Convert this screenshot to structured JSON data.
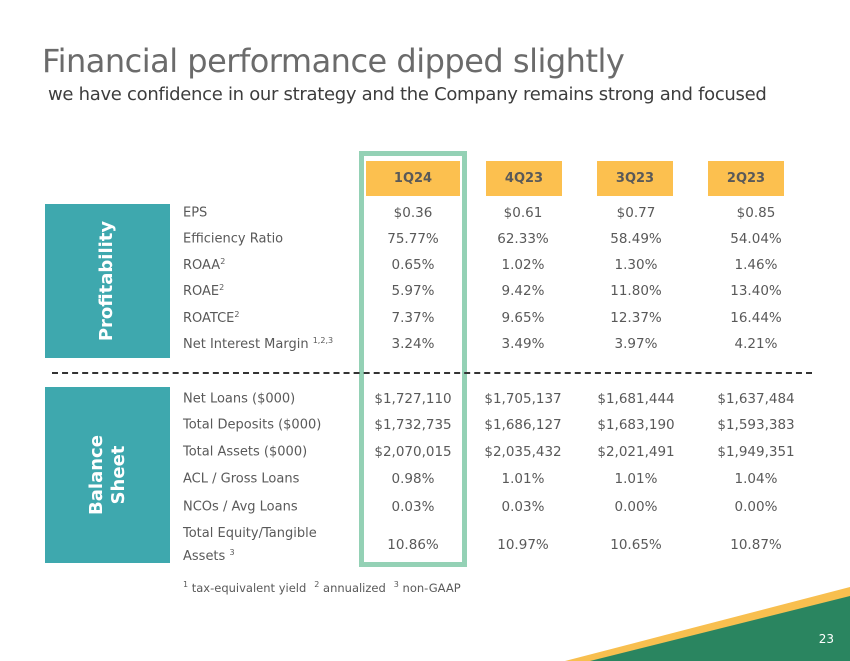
{
  "title": "Financial performance dipped slightly",
  "subtitle": "we have confidence in our strategy and the Company remains strong and focused",
  "columns": [
    "1Q24",
    "4Q23",
    "3Q23",
    "2Q23"
  ],
  "sections": [
    {
      "name": "Profitability",
      "rows": [
        {
          "label": "EPS",
          "sup": "",
          "values": [
            "$0.36",
            "$0.61",
            "$0.77",
            "$0.85"
          ]
        },
        {
          "label": "Efficiency Ratio",
          "sup": "",
          "values": [
            "75.77%",
            "62.33%",
            "58.49%",
            "54.04%"
          ]
        },
        {
          "label": "ROAA",
          "sup": "2",
          "values": [
            "0.65%",
            "1.02%",
            "1.30%",
            "1.46%"
          ]
        },
        {
          "label": "ROAE",
          "sup": "2",
          "values": [
            "5.97%",
            "9.42%",
            "11.80%",
            "13.40%"
          ]
        },
        {
          "label": "ROATCE",
          "sup": "2",
          "values": [
            "7.37%",
            "9.65%",
            "12.37%",
            "16.44%"
          ]
        },
        {
          "label": "Net Interest Margin ",
          "sup": "1,2,3",
          "values": [
            "3.24%",
            "3.49%",
            "3.97%",
            "4.21%"
          ]
        }
      ]
    },
    {
      "name": "Balance Sheet",
      "rows": [
        {
          "label": "Net Loans ($000)",
          "sup": "",
          "values": [
            "$1,727,110",
            "$1,705,137",
            "$1,681,444",
            "$1,637,484"
          ]
        },
        {
          "label": "Total Deposits ($000)",
          "sup": "",
          "values": [
            "$1,732,735",
            "$1,686,127",
            "$1,683,190",
            "$1,593,383"
          ]
        },
        {
          "label": "Total Assets ($000)",
          "sup": "",
          "values": [
            "$2,070,015",
            "$2,035,432",
            "$2,021,491",
            "$1,949,351"
          ]
        },
        {
          "label": "ACL / Gross Loans",
          "sup": "",
          "values": [
            "0.98%",
            "1.01%",
            "1.01%",
            "1.04%"
          ]
        },
        {
          "label": "NCOs / Avg Loans",
          "sup": "",
          "values": [
            "0.03%",
            "0.03%",
            "0.00%",
            "0.00%"
          ]
        },
        {
          "label": "Total Equity/Tangible Assets ",
          "sup": "3",
          "values": [
            "10.86%",
            "10.97%",
            "10.65%",
            "10.87%"
          ]
        }
      ]
    }
  ],
  "footnotes": [
    {
      "sup": "1",
      "text": " tax-equivalent yield"
    },
    {
      "sup": "2",
      "text": " annualized"
    },
    {
      "sup": "3",
      "text": " non-GAAP"
    }
  ],
  "page_number": "23",
  "colors": {
    "accent_teal": "#3ea8ae",
    "header_yellow": "#fcc04f",
    "highlight_green": "#94d1b5",
    "footer_green": "#2a8560"
  }
}
